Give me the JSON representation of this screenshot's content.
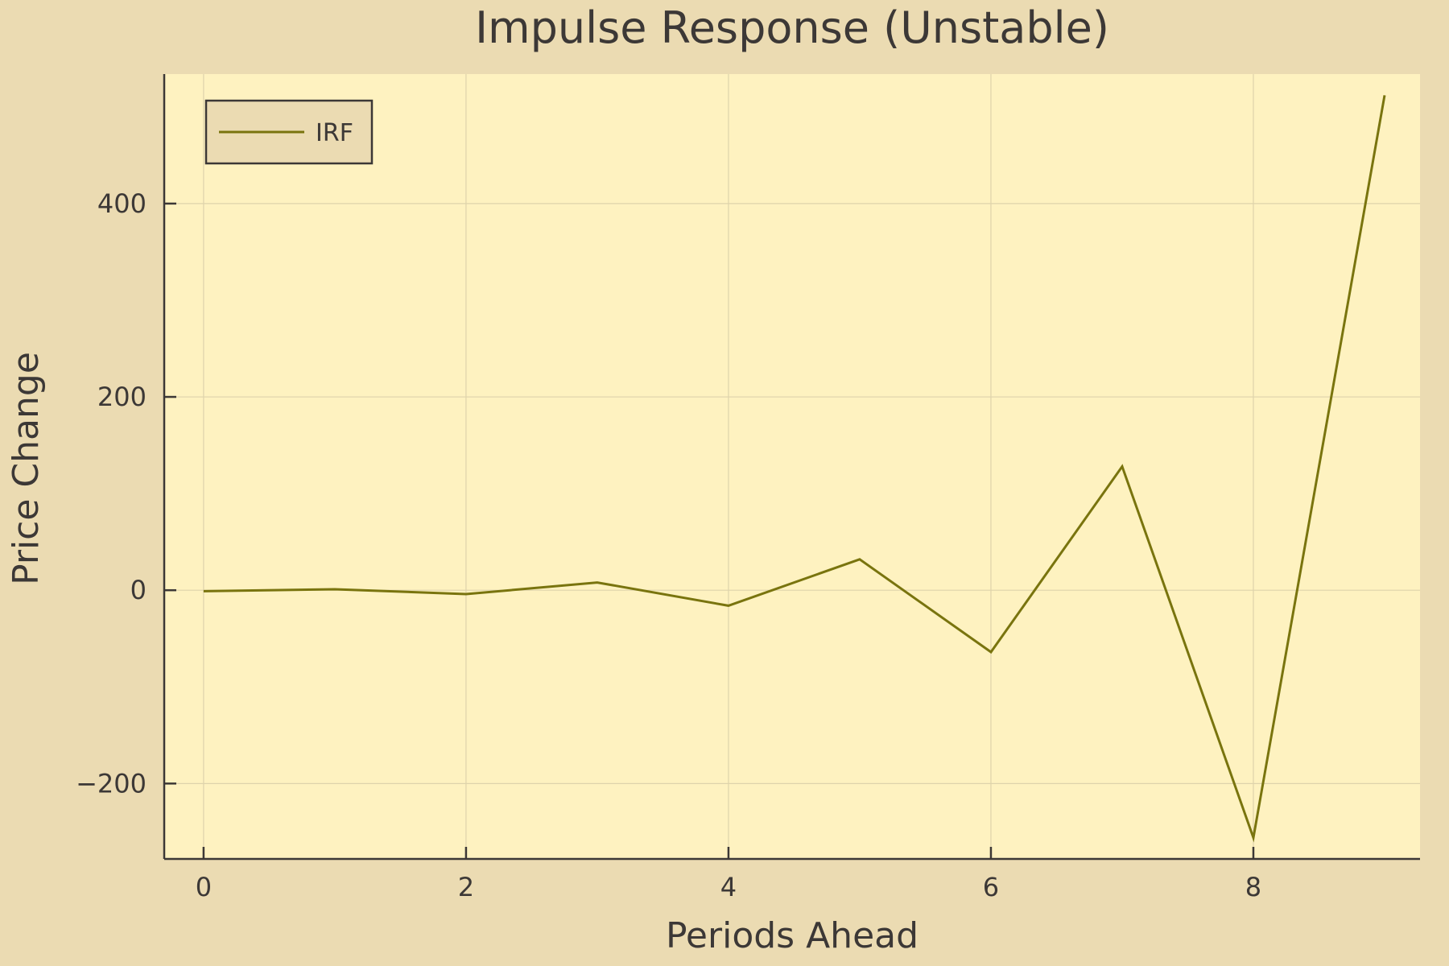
{
  "colors": {
    "page_bg": "#ebdbb2",
    "plot_bg": "#fef2c0",
    "series_line": "#79740e",
    "axis": "#3c3836",
    "grid": "#ded3ab",
    "text": "#3c3836"
  },
  "chart_data": {
    "type": "line",
    "title": "Impulse Response (Unstable)",
    "xlabel": "Periods Ahead",
    "ylabel": "Price Change",
    "xlim": [
      -0.3,
      9.27
    ],
    "ylim": [
      -278,
      534
    ],
    "x_ticks": [
      0,
      2,
      4,
      6,
      8
    ],
    "x_tick_labels": [
      "0",
      "2",
      "4",
      "6",
      "8"
    ],
    "y_ticks": [
      -200,
      0,
      200,
      400
    ],
    "y_tick_labels": [
      "−200",
      "0",
      "200",
      "400"
    ],
    "grid": true,
    "legend_position": "top-left",
    "series": [
      {
        "name": "IRF",
        "x": [
          0,
          1,
          2,
          3,
          4,
          5,
          6,
          7,
          8,
          9
        ],
        "y": [
          -1,
          1,
          -4,
          8,
          -16,
          32,
          -64,
          128,
          -256,
          512
        ]
      }
    ]
  }
}
